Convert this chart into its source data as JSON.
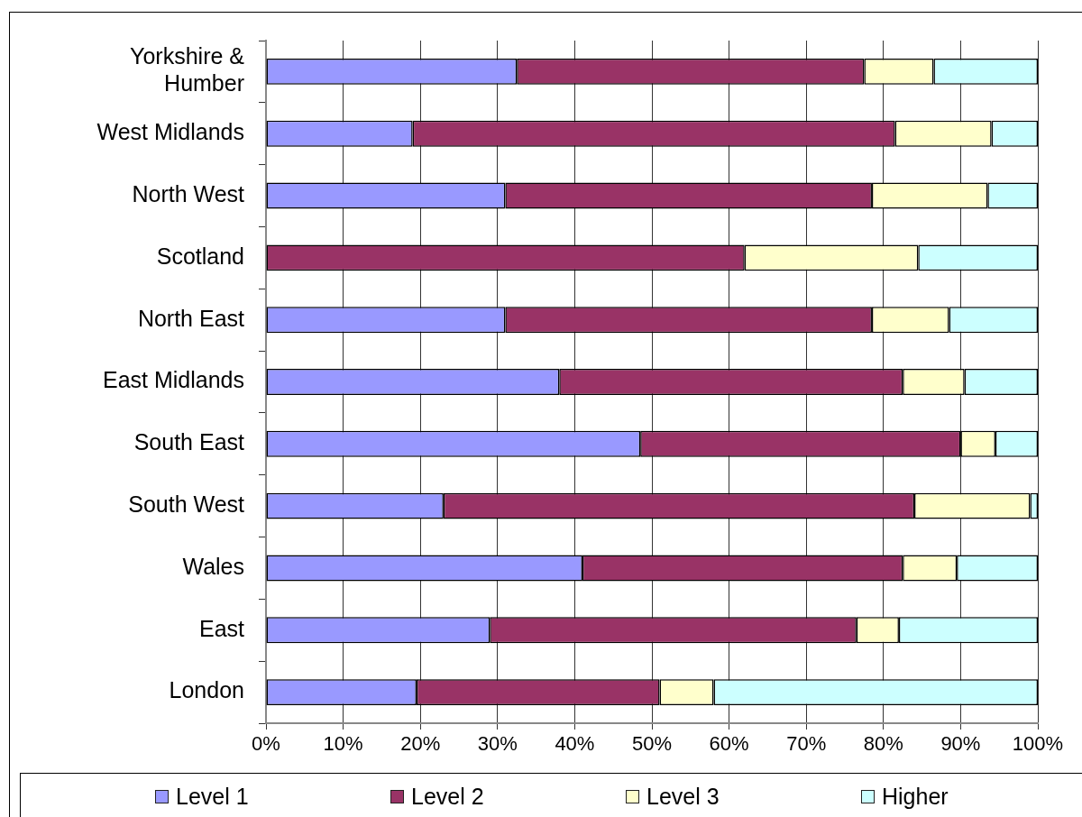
{
  "chart_data": {
    "type": "bar",
    "orientation": "horizontal",
    "stacked": true,
    "categories": [
      "Yorkshire & Humber",
      "West Midlands",
      "North West",
      "Scotland",
      "North East",
      "East Midlands",
      "South East",
      "South West",
      "Wales",
      "East",
      "London"
    ],
    "series": [
      {
        "name": "Level 1",
        "color": "#9999ff",
        "values": [
          32.5,
          19,
          31,
          null,
          31,
          38,
          48.5,
          23,
          41,
          29,
          19.5
        ]
      },
      {
        "name": "Level 2",
        "color": "#993366",
        "values": [
          45,
          62.5,
          47.5,
          62,
          47.5,
          44.5,
          41.5,
          61,
          41.5,
          47.5,
          31.5
        ]
      },
      {
        "name": "Level 3",
        "color": "#ffffcc",
        "values": [
          9,
          12.5,
          15,
          22.5,
          10,
          8,
          4.5,
          15,
          7,
          5.5,
          7
        ]
      },
      {
        "name": "Higher",
        "color": "#ccffff",
        "values": [
          13.5,
          6,
          6.5,
          15.5,
          11.5,
          9.5,
          5.5,
          1,
          10.5,
          18,
          42
        ]
      }
    ],
    "xlim": [
      0,
      100
    ],
    "xticks": [
      {
        "value": 0,
        "label": "0%"
      },
      {
        "value": 10,
        "label": "10%"
      },
      {
        "value": 20,
        "label": "20%"
      },
      {
        "value": 30,
        "label": "30%"
      },
      {
        "value": 40,
        "label": "40%"
      },
      {
        "value": 50,
        "label": "50%"
      },
      {
        "value": 60,
        "label": "60%"
      },
      {
        "value": 70,
        "label": "70%"
      },
      {
        "value": 80,
        "label": "80%"
      },
      {
        "value": 90,
        "label": "90%"
      },
      {
        "value": 100,
        "label": "100%"
      }
    ],
    "grid": "x",
    "legend": "bottom"
  }
}
